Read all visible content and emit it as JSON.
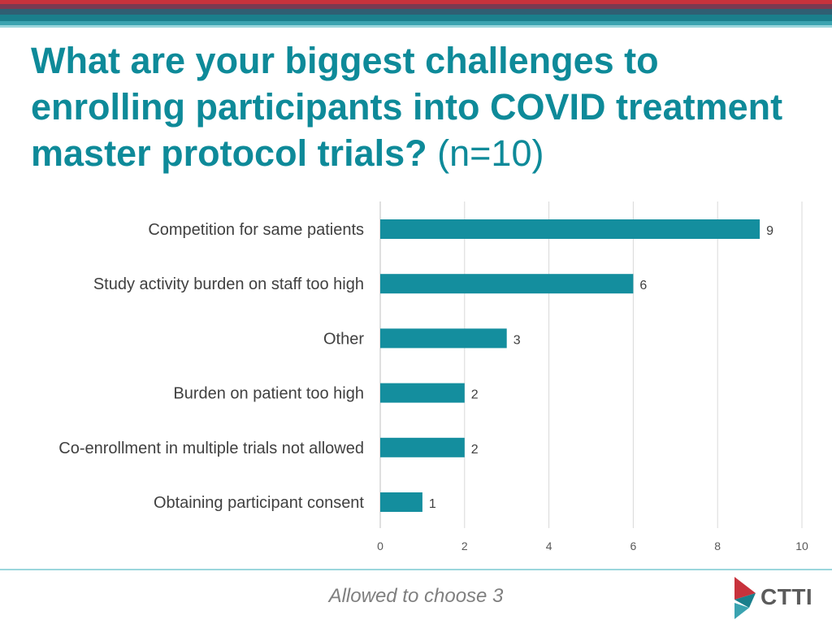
{
  "slide": {
    "title": "What are your biggest challenges to enrolling participants into COVID treatment master protocol trials?",
    "title_suffix": "(n=10)",
    "footnote": "Allowed to choose 3",
    "logo_text": "CTTI"
  },
  "colors": {
    "bar": "#148e9e",
    "title": "#0e8a99",
    "accent_red": "#c8323c",
    "accent_teal": "#1a7f8c"
  },
  "chart_data": {
    "type": "bar",
    "orientation": "horizontal",
    "categories": [
      "Competition for same patients",
      "Study activity burden on staff too high",
      "Other",
      "Burden on patient too high",
      "Co-enrollment in multiple trials not allowed",
      "Obtaining participant consent"
    ],
    "values": [
      9,
      6,
      3,
      2,
      2,
      1
    ],
    "xlim": [
      0,
      10
    ],
    "xticks": [
      0,
      2,
      4,
      6,
      8,
      10
    ],
    "grid": true,
    "data_labels": true
  }
}
